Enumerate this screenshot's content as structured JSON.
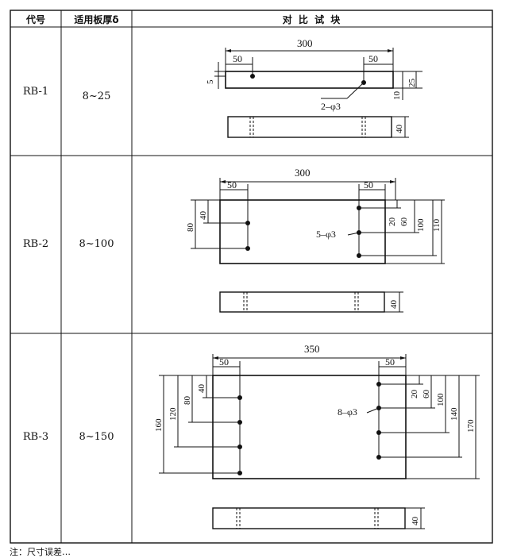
{
  "table": {
    "headers": {
      "code": "代号",
      "thickness": "适用板厚δ",
      "block": "对 比 试 块"
    },
    "rows": [
      {
        "code": "RB-1",
        "thickness": "8~25",
        "dims": {
          "length": "300",
          "left_offset": "50",
          "right_offset": "50",
          "hole_depth": "5",
          "height": "25",
          "bottom_depth": "10",
          "holes": "2–φ3",
          "width": "40"
        }
      },
      {
        "code": "RB-2",
        "thickness": "8~100",
        "dims": {
          "length": "300",
          "left_offset": "50",
          "right_offset": "50",
          "left_inner": "40",
          "left_outer": "80",
          "r1": "20",
          "r2": "60",
          "r3": "100",
          "r4": "110",
          "holes": "5–φ3",
          "width": "40"
        }
      },
      {
        "code": "RB-3",
        "thickness": "8~150",
        "dims": {
          "length": "350",
          "left_offset": "50",
          "right_offset": "50",
          "l1": "40",
          "l2": "80",
          "l3": "120",
          "l4": "160",
          "r1": "20",
          "r2": "60",
          "r3": "100",
          "r4": "140",
          "r5": "170",
          "holes": "8–φ3",
          "width": "40"
        }
      }
    ]
  },
  "footnote": "注：尺寸误差…"
}
